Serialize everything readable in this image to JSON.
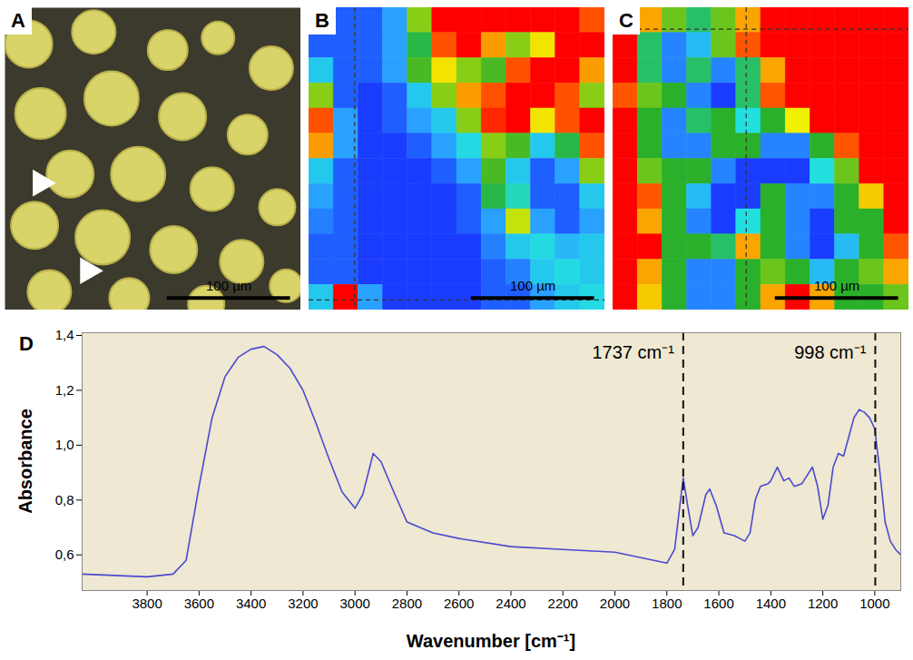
{
  "chart_data": [
    {
      "type": "image",
      "panel_label": "A",
      "xlim": [
        0,
        240
      ],
      "ylim": [
        0,
        240
      ],
      "tick_labels": false,
      "scale_bar": {
        "length": 100,
        "label": "100 µm"
      }
    },
    {
      "type": "heatmap",
      "panel_label": "B",
      "xlim": [
        0,
        240
      ],
      "ylim": [
        0,
        240
      ],
      "tick_labels": false,
      "scale_bar": {
        "length": 100,
        "label": "100 µm"
      },
      "crosshair": {
        "x": 37,
        "y": 232
      },
      "cells": [
        [
          0.1,
          0.1,
          0.1,
          0.2,
          0.6,
          1,
          1,
          1,
          1,
          1,
          1,
          0.9
        ],
        [
          0.1,
          0.1,
          0.1,
          0.2,
          0.5,
          0.9,
          1,
          0.8,
          0.6,
          0.7,
          1,
          1
        ],
        [
          0.3,
          0.1,
          0.1,
          0.2,
          0.55,
          0.7,
          0.6,
          0.55,
          0.9,
          1,
          1,
          0.8
        ],
        [
          0.6,
          0.1,
          0.05,
          0.1,
          0.3,
          0.6,
          0.8,
          0.9,
          1,
          1,
          0.9,
          0.6
        ],
        [
          0.9,
          0.2,
          0.05,
          0.1,
          0.2,
          0.3,
          0.6,
          0.95,
          1,
          0.7,
          0.9,
          1
        ],
        [
          0.8,
          0.2,
          0.05,
          0.05,
          0.1,
          0.2,
          0.35,
          0.6,
          0.55,
          0.3,
          0.5,
          0.9
        ],
        [
          0.3,
          0.1,
          0.05,
          0.05,
          0.05,
          0.1,
          0.2,
          0.55,
          0.3,
          0.1,
          0.2,
          0.6
        ],
        [
          0.2,
          0.1,
          0.05,
          0.05,
          0.05,
          0.05,
          0.1,
          0.5,
          0.4,
          0.1,
          0.1,
          0.3
        ],
        [
          0.15,
          0.1,
          0.05,
          0.05,
          0.05,
          0.05,
          0.1,
          0.2,
          0.65,
          0.2,
          0.1,
          0.2
        ],
        [
          0.1,
          0.1,
          0.05,
          0.05,
          0.05,
          0.05,
          0.05,
          0.15,
          0.3,
          0.35,
          0.25,
          0.3
        ],
        [
          0.1,
          0.1,
          0.05,
          0.05,
          0.05,
          0.05,
          0.05,
          0.1,
          0.15,
          0.3,
          0.35,
          0.3
        ],
        [
          0.3,
          1,
          0.2,
          0.05,
          0.05,
          0.05,
          0.05,
          0.1,
          0.1,
          0.2,
          0.3,
          0.35
        ]
      ]
    },
    {
      "type": "heatmap",
      "panel_label": "C",
      "xlim": [
        0,
        240
      ],
      "ylim": [
        0,
        240
      ],
      "tick_labels": false,
      "scale_bar": {
        "length": 100,
        "label": "100 µm"
      },
      "crosshair": {
        "x": 108,
        "y": 17
      },
      "cells": [
        [
          1,
          0.8,
          0.6,
          0.5,
          0.6,
          0.8,
          1,
          1,
          1,
          1,
          1,
          1
        ],
        [
          1,
          0.5,
          0.2,
          0.3,
          0.6,
          0.9,
          1,
          1,
          1,
          1,
          1,
          1
        ],
        [
          1,
          0.5,
          0.2,
          0.5,
          0.2,
          0.5,
          0.8,
          1,
          1,
          1,
          1,
          1
        ],
        [
          0.9,
          0.6,
          0.55,
          0.2,
          0.1,
          0.5,
          0.9,
          1,
          1,
          1,
          1,
          1
        ],
        [
          1,
          0.55,
          0.2,
          0.5,
          0.55,
          0.4,
          0.55,
          0.7,
          1,
          1,
          1,
          1
        ],
        [
          1,
          0.55,
          0.2,
          0.2,
          0.55,
          0.55,
          0.2,
          0.2,
          0.55,
          0.9,
          1,
          1
        ],
        [
          1,
          0.6,
          0.55,
          0.55,
          0.2,
          0.1,
          0.1,
          0.1,
          0.4,
          0.6,
          1,
          1
        ],
        [
          1,
          0.9,
          0.55,
          0.3,
          0.1,
          0.1,
          0.55,
          0.2,
          0.2,
          0.55,
          0.75,
          1
        ],
        [
          1,
          0.8,
          0.55,
          0.2,
          0.1,
          0.4,
          0.55,
          0.2,
          0.1,
          0.55,
          0.55,
          1
        ],
        [
          1,
          1,
          0.55,
          0.55,
          0.5,
          0.8,
          0.55,
          0.2,
          0.1,
          0.3,
          0.55,
          0.9
        ],
        [
          1,
          0.8,
          0.55,
          0.2,
          0.2,
          0.55,
          0.6,
          0.55,
          0.3,
          0.55,
          0.6,
          0.8
        ],
        [
          1,
          0.75,
          0.55,
          0.2,
          0.2,
          0.55,
          0.8,
          1,
          0.8,
          0.55,
          0.55,
          0.6
        ]
      ]
    },
    {
      "type": "line",
      "panel_label": "D",
      "xlabel": "Wavenumber [cm⁻¹]",
      "ylabel": "Absorbance",
      "color": "#4a4ad0",
      "xlim": [
        4050,
        900
      ],
      "xticks": [
        3800,
        3600,
        3400,
        3200,
        3000,
        2800,
        2600,
        2400,
        2200,
        2000,
        1800,
        1600,
        1400,
        1200,
        1000
      ],
      "ylim": [
        0.47,
        1.41
      ],
      "yticks": [
        {
          "value": 0.6,
          "label": "0,6"
        },
        {
          "value": 0.8,
          "label": "0,8"
        },
        {
          "value": 1.0,
          "label": "1,0"
        },
        {
          "value": 1.2,
          "label": "1,2"
        },
        {
          "value": 1.4,
          "label": "1,4"
        }
      ],
      "annotations": [
        {
          "x": 1737,
          "label": "1737 cm⁻¹"
        },
        {
          "x": 998,
          "label": "998 cm⁻¹"
        }
      ],
      "x": [
        4050,
        3800,
        3700,
        3650,
        3600,
        3550,
        3500,
        3450,
        3400,
        3350,
        3300,
        3250,
        3200,
        3150,
        3100,
        3050,
        3000,
        2970,
        2930,
        2900,
        2860,
        2800,
        2700,
        2600,
        2400,
        2200,
        2000,
        1900,
        1800,
        1770,
        1750,
        1737,
        1720,
        1700,
        1680,
        1650,
        1635,
        1610,
        1580,
        1540,
        1500,
        1480,
        1460,
        1440,
        1410,
        1400,
        1375,
        1350,
        1330,
        1310,
        1280,
        1260,
        1240,
        1220,
        1200,
        1180,
        1160,
        1140,
        1120,
        1100,
        1080,
        1060,
        1040,
        1020,
        1000,
        980,
        960,
        940,
        920,
        900
      ],
      "values": [
        0.53,
        0.52,
        0.53,
        0.58,
        0.85,
        1.1,
        1.25,
        1.32,
        1.35,
        1.36,
        1.33,
        1.28,
        1.2,
        1.08,
        0.95,
        0.83,
        0.77,
        0.82,
        0.97,
        0.94,
        0.85,
        0.72,
        0.68,
        0.66,
        0.63,
        0.62,
        0.61,
        0.59,
        0.57,
        0.62,
        0.78,
        0.88,
        0.78,
        0.67,
        0.7,
        0.82,
        0.84,
        0.78,
        0.68,
        0.67,
        0.65,
        0.68,
        0.8,
        0.85,
        0.86,
        0.87,
        0.92,
        0.87,
        0.88,
        0.85,
        0.86,
        0.89,
        0.92,
        0.85,
        0.73,
        0.78,
        0.92,
        0.97,
        0.96,
        1.03,
        1.1,
        1.13,
        1.12,
        1.1,
        1.06,
        0.9,
        0.72,
        0.65,
        0.62,
        0.6
      ]
    }
  ]
}
